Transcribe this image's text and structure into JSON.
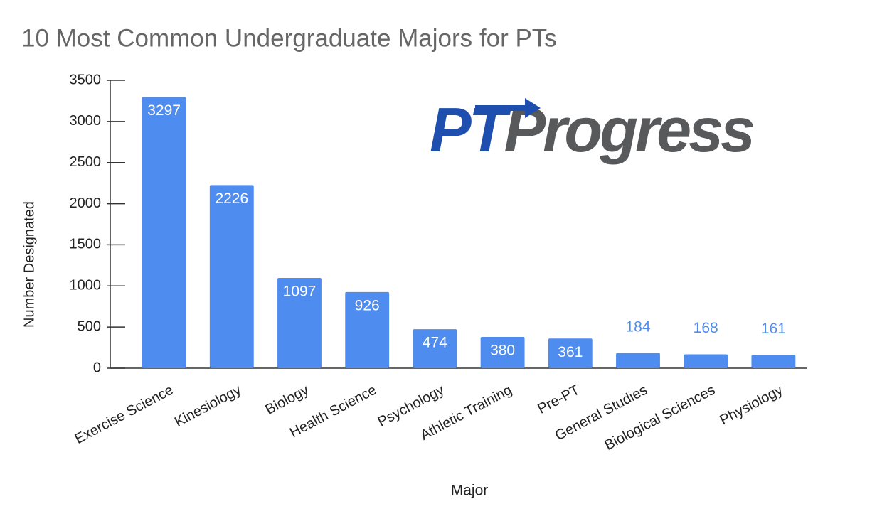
{
  "chart_data": {
    "type": "bar",
    "title": "10 Most Common Undergraduate Majors for PTs",
    "logo": {
      "accent": "PT",
      "text": "Progress"
    },
    "x_label": "Major",
    "y_label": "Number Designated",
    "categories": [
      "Exercise Science",
      "Kinesiology",
      "Biology",
      "Health Science",
      "Psychology",
      "Athletic Training",
      "Pre-PT",
      "General Studies",
      "Biological Sciences",
      "Physiology"
    ],
    "values": [
      3297,
      2226,
      1097,
      926,
      474,
      380,
      361,
      184,
      168,
      161
    ],
    "color": "#4f8cf0",
    "ylim": [
      0,
      3500
    ],
    "yticks": [
      0,
      500,
      1000,
      1500,
      2000,
      2500,
      3000,
      3500
    ],
    "grid": false
  }
}
